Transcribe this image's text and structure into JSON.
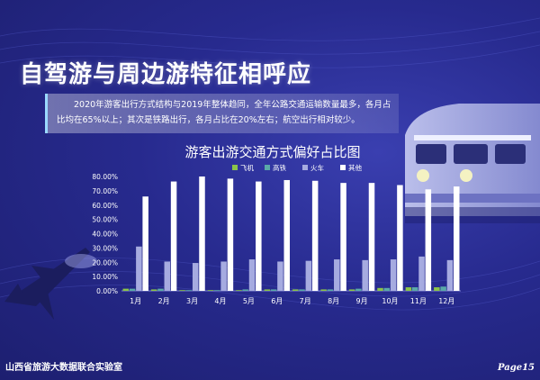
{
  "page": {
    "title": "自驾游与周边游特征相呼应",
    "intro": "2020年游客出行方式结构与2019年整体趋同，全年公路交通运输数量最多，各月占比均在65%以上；其次是铁路出行，各月占比在20%左右；航空出行相对较少。",
    "footer_left": "山西省旅游大数据联合实验室",
    "footer_right": "Page15"
  },
  "colors": {
    "background": "#272a8e",
    "plane": "#8bc34a",
    "rail": "#5aa9a8",
    "train": "#a6abe0",
    "other": "#ffffff"
  },
  "chart_data": {
    "type": "bar",
    "title": "游客出游交通方式偏好占比图",
    "categories": [
      "1月",
      "2月",
      "3月",
      "4月",
      "5月",
      "6月",
      "7月",
      "8月",
      "9月",
      "10月",
      "11月",
      "12月"
    ],
    "series": [
      {
        "name": "飞机",
        "values": [
          1.5,
          1.0,
          0.5,
          0.5,
          0.5,
          1.0,
          1.0,
          1.0,
          1.0,
          2.0,
          2.5,
          2.5
        ]
      },
      {
        "name": "高铁",
        "values": [
          1.5,
          1.5,
          0.5,
          0.5,
          1.0,
          1.0,
          1.0,
          1.0,
          1.5,
          2.0,
          2.5,
          3.0
        ]
      },
      {
        "name": "火车",
        "values": [
          31.0,
          20.5,
          19.5,
          20.5,
          22.0,
          20.5,
          21.0,
          22.0,
          21.5,
          22.0,
          24.0,
          21.5
        ]
      },
      {
        "name": "其他",
        "values": [
          66.0,
          76.5,
          80.0,
          78.5,
          76.5,
          77.5,
          77.0,
          75.5,
          75.5,
          74.0,
          71.0,
          73.0
        ]
      }
    ],
    "ylim": [
      0,
      80
    ],
    "yticks": [
      "0.00%",
      "10.00%",
      "20.00%",
      "30.00%",
      "40.00%",
      "50.00%",
      "60.00%",
      "70.00%",
      "80.00%"
    ],
    "legend_position": "top"
  }
}
